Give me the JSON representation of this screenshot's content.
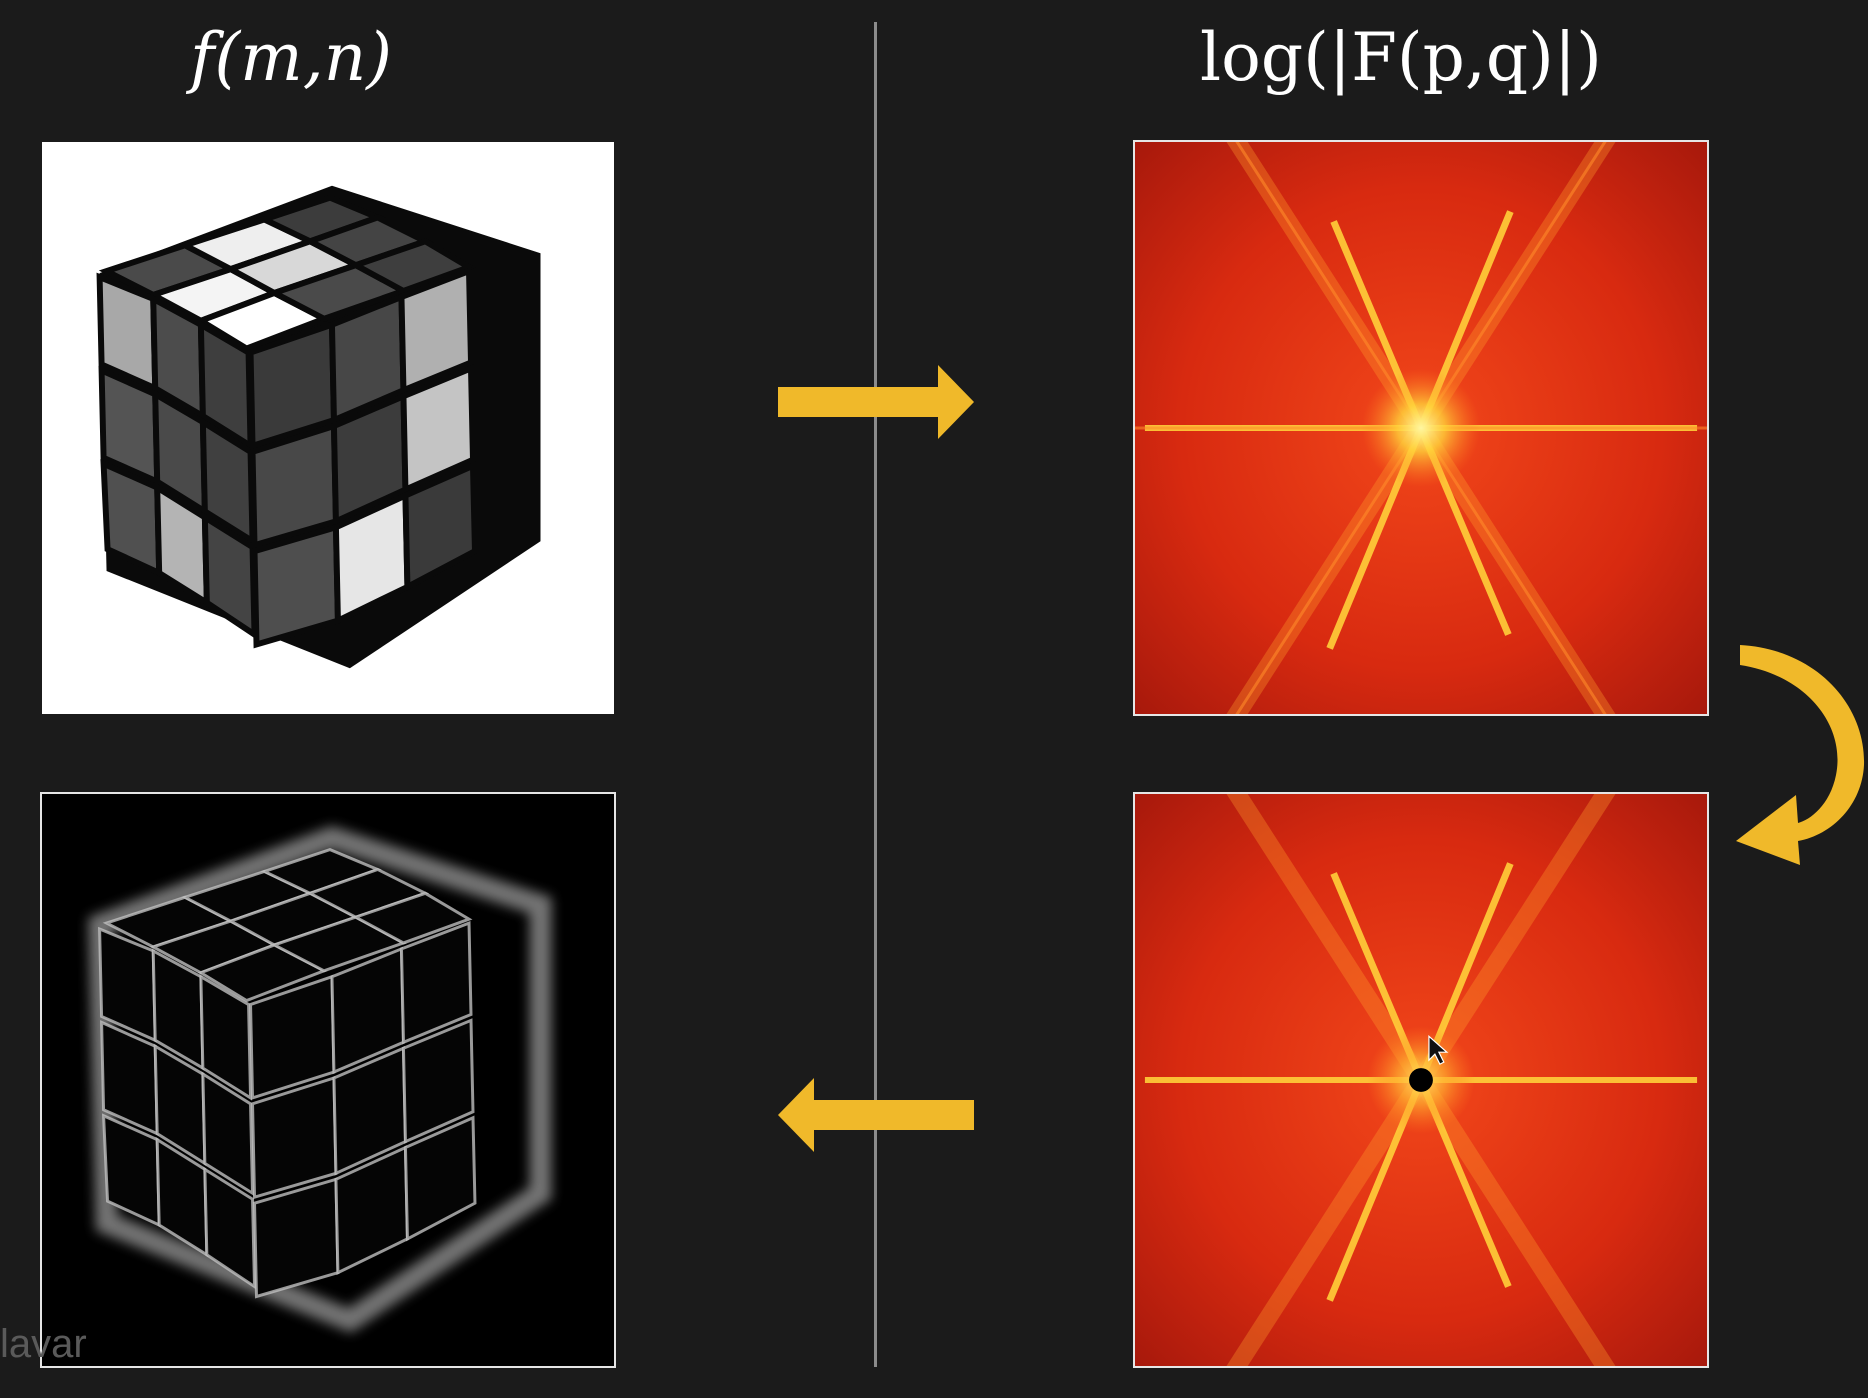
{
  "labels": {
    "spatial": "f(m,n)",
    "spectrum": "log(|F(p,q)|)"
  },
  "watermark": "lavar",
  "colors": {
    "background": "#1b1b1b",
    "arrow": "#f0b92a",
    "spectrum_red": "#d62a12",
    "spectrum_yellow": "#ffe95a"
  },
  "arrows": [
    {
      "name": "forward-arrow",
      "direction": "right"
    },
    {
      "name": "curved-arrow",
      "direction": "down-left"
    },
    {
      "name": "inverse-arrow",
      "direction": "left"
    }
  ],
  "panels": [
    {
      "name": "original-image",
      "content": "rubiks-cube-grayscale"
    },
    {
      "name": "fft-spectrum",
      "content": "log-magnitude-spectrum"
    },
    {
      "name": "filtered-spectrum",
      "content": "spectrum-with-dc-removed"
    },
    {
      "name": "high-pass-result",
      "content": "rubiks-cube-edges"
    }
  ]
}
